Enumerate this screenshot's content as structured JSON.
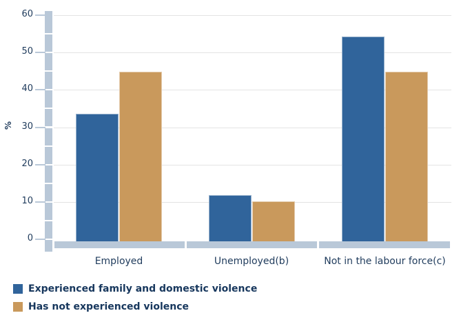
{
  "chart_data": {
    "type": "bar",
    "title": "",
    "categories": [
      "Employed",
      "Unemployed(b)",
      "Not in the labour force(c)"
    ],
    "series": [
      {
        "name": "Experienced family and domestic violence",
        "color": "#30649B",
        "values": [
          33.6,
          11.8,
          54.3
        ]
      },
      {
        "name": "Has not experienced violence",
        "color": "#C9995C",
        "values": [
          44.8,
          10.2,
          44.9
        ]
      }
    ],
    "xlabel": "",
    "ylabel": "%",
    "ylim": [
      0,
      60
    ],
    "yticks": [
      0,
      10,
      20,
      30,
      40,
      50,
      60
    ],
    "grid": "horizontal",
    "legend_position": "bottom-left",
    "styling": {
      "axis_band_color": "#B9C8D8",
      "gridline_color": "#E3E3E3",
      "text_color": "#1F3B5C",
      "legend_text_color": "#17375D",
      "background_color": "#FFFFFF"
    }
  }
}
